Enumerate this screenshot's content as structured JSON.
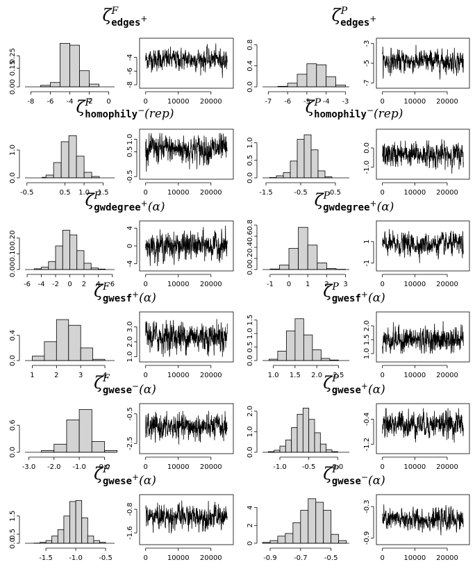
{
  "chart_data": [
    {
      "type": "bar",
      "title": {
        "zeta": "ζ",
        "sup": "F",
        "sub": "edges",
        "sign": "+",
        "arg": ""
      },
      "x_ticks": [
        "-8",
        "-6",
        "-4",
        "-2",
        "0"
      ],
      "y_ticks": [
        "0.00",
        "0.15",
        "0.25"
      ],
      "xlim": [
        -8.6,
        0.6
      ],
      "ylim": [
        0,
        0.38
      ],
      "bins": [
        [
          -7,
          -6,
          0.012
        ],
        [
          -6,
          -5,
          0.035
        ],
        [
          -5,
          -4,
          0.35
        ],
        [
          -4,
          -3,
          0.335
        ],
        [
          -3,
          -2,
          0.13
        ],
        [
          -2,
          -1,
          0.022
        ]
      ]
    },
    {
      "type": "line",
      "title": "",
      "x_ticks": [
        "0",
        "10000",
        "20000"
      ],
      "y_ticks": [
        "-8",
        "-6",
        "-4"
      ],
      "xlim": [
        -1000,
        26000
      ],
      "ylim": [
        -8.3,
        -1.4
      ],
      "trace": {
        "n": 25000,
        "mean": -4.3,
        "sd": 0.75,
        "min": -7.6,
        "max": -1.7
      }
    },
    {
      "type": "bar",
      "title": {
        "zeta": "ζ",
        "sup": "P",
        "sub": "edges",
        "sign": "+",
        "arg": ""
      },
      "x_ticks": [
        "-7",
        "-6",
        "-5",
        "-4",
        "-3"
      ],
      "y_ticks": [
        "0.0",
        "0.4",
        "0.8"
      ],
      "xlim": [
        -7.3,
        -2.8
      ],
      "ylim": [
        0,
        0.9
      ],
      "bins": [
        [
          -6.5,
          -6,
          0.01
        ],
        [
          -6,
          -5.5,
          0.07
        ],
        [
          -5.5,
          -5,
          0.24
        ],
        [
          -5,
          -4.5,
          0.44
        ],
        [
          -4.5,
          -4,
          0.42
        ],
        [
          -4,
          -3.5,
          0.19
        ],
        [
          -3.5,
          -3,
          0.035
        ]
      ]
    },
    {
      "type": "line",
      "title": "",
      "x_ticks": [
        "0",
        "10000",
        "20000"
      ],
      "y_ticks": [
        "-7",
        "-5",
        "-3"
      ],
      "xlim": [
        -1000,
        26000
      ],
      "ylim": [
        -7.4,
        -2.6
      ],
      "trace": {
        "n": 25000,
        "mean": -4.8,
        "sd": 0.55,
        "min": -6.9,
        "max": -2.9
      }
    },
    {
      "type": "bar",
      "title": {
        "zeta": "ζ",
        "sup": "F",
        "sub": "homophily",
        "sign": "−",
        "arg": "(rep)"
      },
      "x_ticks": [
        "-0.5",
        "0.5",
        "1.0",
        "1.5"
      ],
      "y_ticks": [
        "0.0",
        "1.0"
      ],
      "xlim": [
        -0.55,
        1.8
      ],
      "ylim": [
        0,
        1.7
      ],
      "bins": [
        [
          -0.1,
          0,
          0.02
        ],
        [
          0,
          0.2,
          0.1
        ],
        [
          0.2,
          0.4,
          0.55
        ],
        [
          0.4,
          0.6,
          1.3
        ],
        [
          0.6,
          0.8,
          1.52
        ],
        [
          0.8,
          1.0,
          0.78
        ],
        [
          1.0,
          1.2,
          0.2
        ],
        [
          1.2,
          1.4,
          0.05
        ]
      ]
    },
    {
      "type": "line",
      "title": "",
      "x_ticks": [
        "0",
        "10000",
        "20000"
      ],
      "y_ticks": [
        "-0.5",
        "0.5",
        "1.0"
      ],
      "xlim": [
        -1000,
        26000
      ],
      "ylim": [
        -0.55,
        1.35
      ],
      "trace": {
        "n": 25000,
        "mean": 0.6,
        "sd": 0.28,
        "min": -0.3,
        "max": 1.25
      }
    },
    {
      "type": "bar",
      "title": {
        "zeta": "ζ",
        "sup": "P",
        "sub": "homophily",
        "sign": "−",
        "arg": "(rep)"
      },
      "x_ticks": [
        "-1.5",
        "-0.5",
        "0.5"
      ],
      "y_ticks": [
        "0.0",
        "0.5",
        "1.0"
      ],
      "xlim": [
        -1.6,
        0.9
      ],
      "ylim": [
        0,
        1.35
      ],
      "bins": [
        [
          -1.4,
          -1.2,
          0.01
        ],
        [
          -1.2,
          -1.0,
          0.06
        ],
        [
          -1.0,
          -0.8,
          0.15
        ],
        [
          -0.8,
          -0.6,
          0.48
        ],
        [
          -0.6,
          -0.4,
          1.1
        ],
        [
          -0.4,
          -0.2,
          1.23
        ],
        [
          -0.2,
          0,
          0.8
        ],
        [
          0,
          0.2,
          0.2
        ],
        [
          0.2,
          0.4,
          0.03
        ]
      ]
    },
    {
      "type": "line",
      "title": "",
      "x_ticks": [
        "0",
        "10000",
        "20000"
      ],
      "y_ticks": [
        "-1.0",
        "0.0"
      ],
      "xlim": [
        -1000,
        26000
      ],
      "ylim": [
        -1.55,
        0.9
      ],
      "trace": {
        "n": 25000,
        "mean": -0.35,
        "sd": 0.3,
        "min": -1.4,
        "max": 0.65
      }
    },
    {
      "type": "bar",
      "title": {
        "zeta": "ζ",
        "sup": "F",
        "sub": "gwdegree",
        "sign": "+",
        "arg": "(α)"
      },
      "x_ticks": [
        "-6",
        "-4",
        "-2",
        "0",
        "2",
        "4",
        "6"
      ],
      "y_ticks": [
        "0.00",
        "0.10",
        "0.20"
      ],
      "xlim": [
        -6.3,
        6.3
      ],
      "ylim": [
        0,
        0.3
      ],
      "bins": [
        [
          -5,
          -4,
          0.005
        ],
        [
          -4,
          -3,
          0.015
        ],
        [
          -3,
          -2,
          0.05
        ],
        [
          -2,
          -1,
          0.15
        ],
        [
          -1,
          0,
          0.25
        ],
        [
          0,
          1,
          0.22
        ],
        [
          1,
          2,
          0.12
        ],
        [
          2,
          3,
          0.04
        ],
        [
          3,
          4,
          0.01
        ],
        [
          4,
          5,
          0.003
        ]
      ]
    },
    {
      "type": "line",
      "title": "",
      "x_ticks": [
        "0",
        "10000",
        "20000"
      ],
      "y_ticks": [
        "-4",
        "0",
        "4"
      ],
      "xlim": [
        -1000,
        26000
      ],
      "ylim": [
        -5.3,
        5.3
      ],
      "trace": {
        "n": 25000,
        "mean": 0.0,
        "sd": 1.45,
        "min": -4.5,
        "max": 4.8
      }
    },
    {
      "type": "bar",
      "title": {
        "zeta": "ζ",
        "sup": "P",
        "sub": "gwdegree",
        "sign": "+",
        "arg": "(α)"
      },
      "x_ticks": [
        "-1",
        "0",
        "1",
        "2",
        "3"
      ],
      "y_ticks": [
        "0.0",
        "0.2",
        "0.4",
        "0.6",
        "0.8"
      ],
      "xlim": [
        -1.4,
        3.2
      ],
      "ylim": [
        0,
        0.85
      ],
      "bins": [
        [
          -1,
          -0.5,
          0.01
        ],
        [
          -0.5,
          0,
          0.08
        ],
        [
          0,
          0.5,
          0.38
        ],
        [
          0.5,
          1.0,
          0.76
        ],
        [
          1.0,
          1.5,
          0.44
        ],
        [
          1.5,
          2.0,
          0.12
        ],
        [
          2.0,
          2.5,
          0.02
        ],
        [
          2.5,
          3.0,
          0.005
        ]
      ]
    },
    {
      "type": "line",
      "title": "",
      "x_ticks": [
        "0",
        "10000",
        "20000"
      ],
      "y_ticks": [
        "-1",
        "1"
      ],
      "xlim": [
        -1000,
        26000
      ],
      "ylim": [
        -1.6,
        2.8
      ],
      "trace": {
        "n": 25000,
        "mean": 0.75,
        "sd": 0.5,
        "min": -1.0,
        "max": 2.4
      }
    },
    {
      "type": "bar",
      "title": {
        "zeta": "ζ",
        "sup": "F",
        "sub": "gwesf",
        "sign": "+",
        "arg": "(α)"
      },
      "x_ticks": [
        "1",
        "2",
        "3",
        "4"
      ],
      "y_ticks": [
        "0.0",
        "0.4"
      ],
      "xlim": [
        0.7,
        4.4
      ],
      "ylim": [
        0,
        0.75
      ],
      "bins": [
        [
          1.0,
          1.5,
          0.07
        ],
        [
          1.5,
          2.0,
          0.3
        ],
        [
          2.0,
          2.5,
          0.65
        ],
        [
          2.5,
          3.0,
          0.56
        ],
        [
          3.0,
          3.5,
          0.2
        ],
        [
          3.5,
          4.0,
          0.02
        ]
      ]
    },
    {
      "type": "line",
      "title": "",
      "x_ticks": [
        "0",
        "10000",
        "20000"
      ],
      "y_ticks": [
        "1.0",
        "2.0",
        "3.0"
      ],
      "xlim": [
        -1000,
        26000
      ],
      "ylim": [
        0.75,
        3.9
      ],
      "trace": {
        "n": 25000,
        "mean": 2.35,
        "sd": 0.5,
        "min": 1.0,
        "max": 3.8
      }
    },
    {
      "type": "bar",
      "title": {
        "zeta": "ζ",
        "sup": "P",
        "sub": "gwesf",
        "sign": "+",
        "arg": "(α)"
      },
      "x_ticks": [
        "1.0",
        "1.5",
        "2.0",
        "2.5"
      ],
      "y_ticks": [
        "0.0",
        "0.5",
        "1.0",
        "1.5"
      ],
      "xlim": [
        0.75,
        2.75
      ],
      "ylim": [
        0,
        1.75
      ],
      "bins": [
        [
          0.9,
          1.1,
          0.05
        ],
        [
          1.1,
          1.3,
          0.35
        ],
        [
          1.3,
          1.5,
          1.1
        ],
        [
          1.5,
          1.7,
          1.55
        ],
        [
          1.7,
          1.9,
          0.95
        ],
        [
          1.9,
          2.1,
          0.4
        ],
        [
          2.1,
          2.3,
          0.08
        ],
        [
          2.3,
          2.5,
          0.02
        ]
      ]
    },
    {
      "type": "line",
      "title": "",
      "x_ticks": [
        "0",
        "10000",
        "20000"
      ],
      "y_ticks": [
        "1.0",
        "1.5",
        "2.0"
      ],
      "xlim": [
        -1000,
        26000
      ],
      "ylim": [
        0.75,
        2.45
      ],
      "trace": {
        "n": 25000,
        "mean": 1.5,
        "sd": 0.22,
        "min": 1.0,
        "max": 2.35
      }
    },
    {
      "type": "bar",
      "title": {
        "zeta": "ζ",
        "sup": "F",
        "sub": "gwese",
        "sign": "−",
        "arg": "(α)"
      },
      "x_ticks": [
        "-3.0",
        "-2.0",
        "-1.0",
        "0.0"
      ],
      "y_ticks": [
        "0.0",
        "0.6"
      ],
      "xlim": [
        -3.15,
        0.4
      ],
      "ylim": [
        0,
        1.05
      ],
      "bins": [
        [
          -2.5,
          -2.0,
          0.04
        ],
        [
          -2.0,
          -1.5,
          0.18
        ],
        [
          -1.5,
          -1.0,
          0.72
        ],
        [
          -1.0,
          -0.5,
          0.95
        ],
        [
          -0.5,
          0,
          0.24
        ],
        [
          0,
          0.5,
          0.04
        ]
      ]
    },
    {
      "type": "line",
      "title": "",
      "x_ticks": [
        "0",
        "10000",
        "20000"
      ],
      "y_ticks": [
        "-2.5",
        "-0.5"
      ],
      "xlim": [
        -1000,
        26000
      ],
      "ylim": [
        -3.1,
        0.1
      ],
      "trace": {
        "n": 25000,
        "mean": -1.4,
        "sd": 0.42,
        "min": -2.8,
        "max": -0.3
      }
    },
    {
      "type": "bar",
      "title": {
        "zeta": "ζ",
        "sup": "P",
        "sub": "gwese",
        "sign": "+",
        "arg": "(α)"
      },
      "x_ticks": [
        "-1.0",
        "-0.5",
        "0.0"
      ],
      "y_ticks": [
        "0.0",
        "1.0",
        "2.0"
      ],
      "xlim": [
        -1.3,
        0.2
      ],
      "ylim": [
        0,
        2.3
      ],
      "bins": [
        [
          -1.2,
          -1.1,
          0.03
        ],
        [
          -1.1,
          -1.0,
          0.1
        ],
        [
          -1.0,
          -0.9,
          0.3
        ],
        [
          -0.9,
          -0.8,
          0.6
        ],
        [
          -0.8,
          -0.7,
          1.2
        ],
        [
          -0.7,
          -0.6,
          1.85
        ],
        [
          -0.6,
          -0.5,
          2.15
        ],
        [
          -0.5,
          -0.4,
          1.6
        ],
        [
          -0.4,
          -0.3,
          0.95
        ],
        [
          -0.3,
          -0.2,
          0.4
        ],
        [
          -0.2,
          -0.1,
          0.12
        ],
        [
          -0.1,
          0,
          0.03
        ]
      ]
    },
    {
      "type": "line",
      "title": "",
      "x_ticks": [
        "0",
        "10000",
        "20000"
      ],
      "y_ticks": [
        "-1.2",
        "-0.4"
      ],
      "xlim": [
        -1000,
        26000
      ],
      "ylim": [
        -1.45,
        0.05
      ],
      "trace": {
        "n": 25000,
        "mean": -0.55,
        "sd": 0.2,
        "min": -1.35,
        "max": -0.05
      }
    },
    {
      "type": "bar",
      "title": {
        "zeta": "ζ",
        "sup": "F",
        "sub": "gwese",
        "sign": "+",
        "arg": "(α)"
      },
      "x_ticks": [
        "-1.5",
        "-1.0",
        "-0.5"
      ],
      "y_ticks": [
        "0.0",
        "0.5",
        "1.5"
      ],
      "xlim": [
        -1.85,
        -0.35
      ],
      "ylim": [
        0,
        2.6
      ],
      "bins": [
        [
          -1.7,
          -1.6,
          0.01
        ],
        [
          -1.6,
          -1.5,
          0.05
        ],
        [
          -1.5,
          -1.4,
          0.15
        ],
        [
          -1.4,
          -1.3,
          0.4
        ],
        [
          -1.3,
          -1.2,
          0.75
        ],
        [
          -1.2,
          -1.1,
          1.5
        ],
        [
          -1.1,
          -1.0,
          2.3
        ],
        [
          -1.0,
          -0.9,
          2.35
        ],
        [
          -0.9,
          -0.8,
          1.4
        ],
        [
          -0.8,
          -0.7,
          0.4
        ],
        [
          -0.7,
          -0.6,
          0.15
        ],
        [
          -0.6,
          -0.5,
          0.05
        ]
      ]
    },
    {
      "type": "line",
      "title": "",
      "x_ticks": [
        "0",
        "10000",
        "20000"
      ],
      "y_ticks": [
        "-1.6",
        "-0.8"
      ],
      "xlim": [
        -1000,
        26000
      ],
      "ylim": [
        -1.95,
        -0.35
      ],
      "trace": {
        "n": 25000,
        "mean": -1.05,
        "sd": 0.2,
        "min": -1.75,
        "max": -0.5
      }
    },
    {
      "type": "bar",
      "title": {
        "zeta": "ζ",
        "sup": "P",
        "sub": "gwese",
        "sign": "−",
        "arg": "(α)"
      },
      "x_ticks": [
        "-0.9",
        "-0.7",
        "-0.5"
      ],
      "y_ticks": [
        "0",
        "2",
        "4"
      ],
      "xlim": [
        -0.95,
        -0.38
      ],
      "ylim": [
        0,
        5.3
      ],
      "bins": [
        [
          -0.95,
          -0.9,
          0.1
        ],
        [
          -0.9,
          -0.85,
          0.3
        ],
        [
          -0.85,
          -0.8,
          0.8
        ],
        [
          -0.8,
          -0.75,
          1.1
        ],
        [
          -0.75,
          -0.7,
          2.3
        ],
        [
          -0.7,
          -0.65,
          3.7
        ],
        [
          -0.65,
          -0.6,
          5.0
        ],
        [
          -0.6,
          -0.55,
          4.6
        ],
        [
          -0.55,
          -0.5,
          3.7
        ],
        [
          -0.5,
          -0.45,
          1.0
        ],
        [
          -0.45,
          -0.4,
          0.3
        ]
      ]
    },
    {
      "type": "line",
      "title": "",
      "x_ticks": [
        "0",
        "10000",
        "20000"
      ],
      "y_ticks": [
        "-0.9",
        "-0.3"
      ],
      "xlim": [
        -1000,
        26000
      ],
      "ylim": [
        -1.0,
        -0.1
      ],
      "trace": {
        "n": 25000,
        "mean": -0.55,
        "sd": 0.1,
        "min": -0.95,
        "max": -0.2
      }
    }
  ]
}
